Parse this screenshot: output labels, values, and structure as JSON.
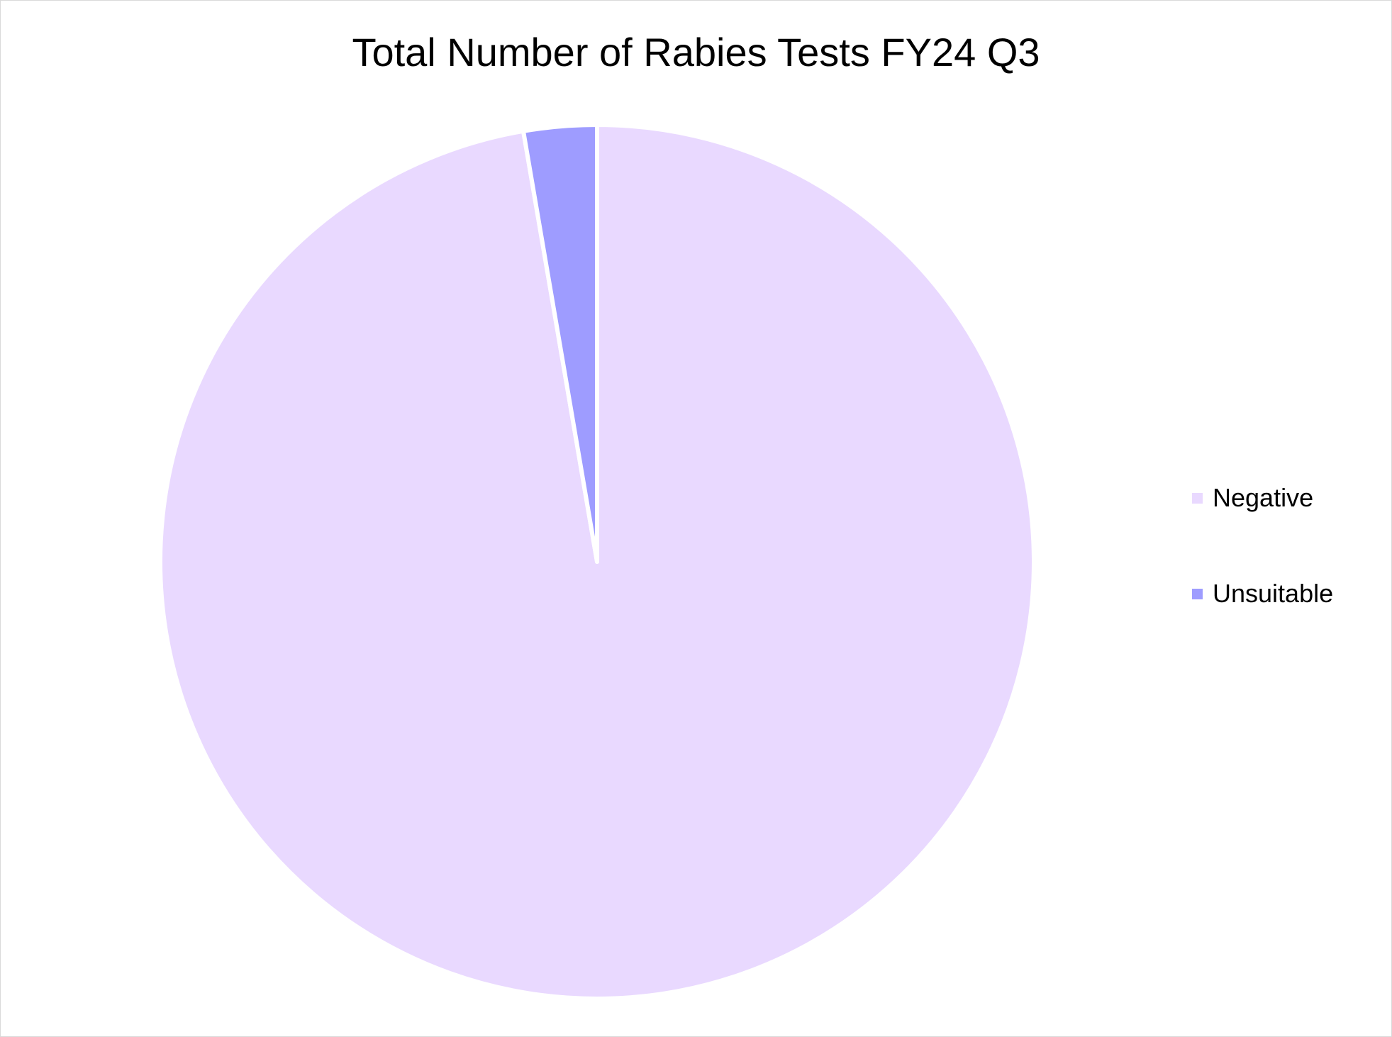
{
  "chart_data": {
    "type": "pie",
    "title": "Total Number of Rabies Tests FY24 Q3",
    "categories": [
      "Negative",
      "Unsuitable"
    ],
    "values": [
      97.3,
      2.7
    ],
    "colors": [
      "#e9d9ff",
      "#9e9cff"
    ],
    "start_angle_deg": 0,
    "direction": "clockwise",
    "legend_position": "right"
  }
}
